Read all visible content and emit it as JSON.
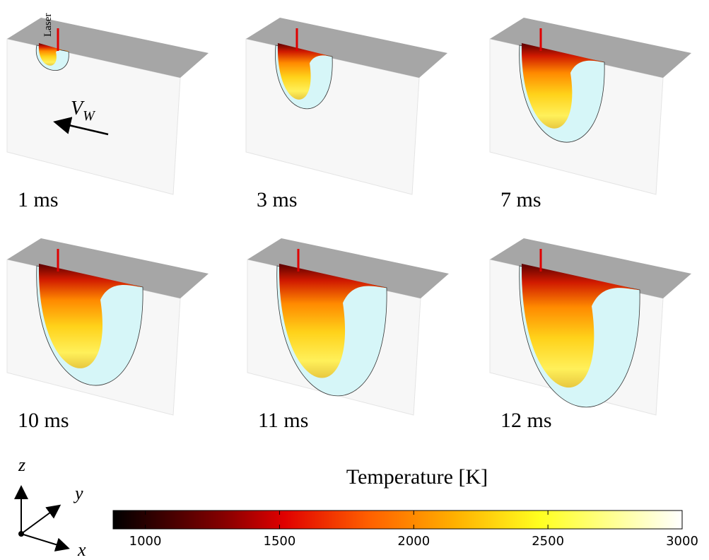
{
  "panels": [
    {
      "label": "1 ms"
    },
    {
      "label": "3 ms"
    },
    {
      "label": "7 ms"
    },
    {
      "label": "10 ms"
    },
    {
      "label": "11 ms"
    },
    {
      "label": "12 ms"
    }
  ],
  "laser_label": "Laser",
  "velocity": {
    "label": "V",
    "subscript": "W"
  },
  "axes": {
    "z": "z",
    "y": "y",
    "x": "x"
  },
  "colorbar": {
    "title": "Temperature [K]",
    "range": [
      880,
      3000
    ],
    "ticks": [
      1000,
      1500,
      2000,
      2500,
      3000
    ]
  }
}
